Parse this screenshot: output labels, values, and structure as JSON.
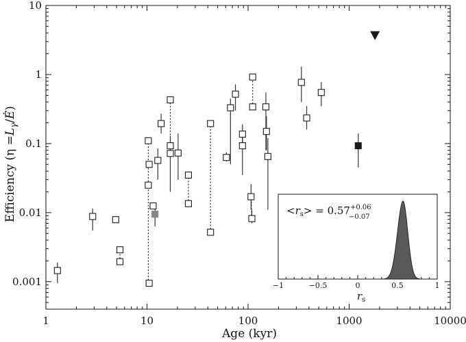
{
  "chart_data": {
    "type": "scatter",
    "xlabel": "Age (kyr)",
    "ylabel": "Efficiency (η = L_γ/Ė)",
    "ylabel_parts": {
      "main": "Efficiency (η =",
      "L": "L",
      "gamma": "γ",
      "slash": "/",
      "Edot": "Ė",
      "close": ")"
    },
    "xscale": "log",
    "yscale": "log",
    "xlim": [
      1,
      10000
    ],
    "ylim": [
      0.0004,
      10
    ],
    "x_ticks": [
      1,
      10,
      100,
      1000,
      10000
    ],
    "x_tick_labels": [
      "1",
      "10",
      "100",
      "1000",
      "10000"
    ],
    "y_ticks": [
      0.001,
      0.01,
      0.1,
      1,
      10
    ],
    "y_tick_labels": [
      "0.001",
      "0.01",
      "0.1",
      "1",
      "10"
    ],
    "grid": false,
    "colors": {
      "open_marker": "#ffffff",
      "marker_edge": "#1a1a1a",
      "gray_marker": "#888888",
      "filled_marker": "#1a1a1a",
      "error_bar": "#333333",
      "hist_fill": "#595959"
    },
    "points": [
      {
        "x": 1.3,
        "y": 0.00145,
        "lo": 0.00095,
        "hi": 0.0019,
        "style": "open"
      },
      {
        "x": 2.9,
        "y": 0.0088,
        "lo": 0.0055,
        "hi": 0.0115,
        "style": "open"
      },
      {
        "x": 4.9,
        "y": 0.0079,
        "lo": 0.0072,
        "hi": 0.0087,
        "style": "open"
      },
      {
        "x": 5.4,
        "y": 0.0029,
        "style": "open"
      },
      {
        "x": 5.4,
        "y": 0.00195,
        "style": "open"
      },
      {
        "x": 10.3,
        "y": 0.11,
        "style": "open"
      },
      {
        "x": 10.5,
        "y": 0.05,
        "style": "open"
      },
      {
        "x": 10.3,
        "y": 0.025,
        "style": "open"
      },
      {
        "x": 10.5,
        "y": 0.00095,
        "style": "open"
      },
      {
        "x": 11.5,
        "y": 0.0125,
        "style": "open"
      },
      {
        "x": 12.0,
        "y": 0.0095,
        "lo": 0.0063,
        "hi": 0.0115,
        "style": "gray"
      },
      {
        "x": 12.8,
        "y": 0.057,
        "lo": 0.03,
        "hi": 0.085,
        "style": "open"
      },
      {
        "x": 13.8,
        "y": 0.195,
        "lo": 0.14,
        "hi": 0.27,
        "style": "open"
      },
      {
        "x": 17.0,
        "y": 0.43,
        "style": "open"
      },
      {
        "x": 17.0,
        "y": 0.093,
        "style": "open"
      },
      {
        "x": 17.0,
        "y": 0.072,
        "lo": 0.02,
        "hi": 0.13,
        "style": "open"
      },
      {
        "x": 20.3,
        "y": 0.073,
        "lo": 0.03,
        "hi": 0.14,
        "style": "open"
      },
      {
        "x": 25.7,
        "y": 0.035,
        "style": "open"
      },
      {
        "x": 25.7,
        "y": 0.0135,
        "style": "open"
      },
      {
        "x": 42.5,
        "y": 0.195,
        "style": "open"
      },
      {
        "x": 42.5,
        "y": 0.0052,
        "style": "open"
      },
      {
        "x": 61.0,
        "y": 0.063,
        "lo": 0.055,
        "hi": 0.075,
        "style": "open"
      },
      {
        "x": 67.0,
        "y": 0.33,
        "lo": 0.05,
        "hi": 0.45,
        "style": "open"
      },
      {
        "x": 75.0,
        "y": 0.52,
        "lo": 0.3,
        "hi": 0.72,
        "style": "open"
      },
      {
        "x": 88.0,
        "y": 0.137,
        "lo": 0.095,
        "hi": 0.19,
        "style": "open"
      },
      {
        "x": 88.0,
        "y": 0.093,
        "lo": 0.035,
        "hi": 0.13,
        "style": "open"
      },
      {
        "x": 107.0,
        "y": 0.017,
        "lo": 0.011,
        "hi": 0.026,
        "style": "open"
      },
      {
        "x": 109.0,
        "y": 0.0082,
        "lo": 0.007,
        "hi": 0.011,
        "style": "open"
      },
      {
        "x": 111.0,
        "y": 0.92,
        "style": "open"
      },
      {
        "x": 111.0,
        "y": 0.34,
        "style": "open"
      },
      {
        "x": 150.0,
        "y": 0.34,
        "lo": 0.08,
        "hi": 0.55,
        "style": "open"
      },
      {
        "x": 152.0,
        "y": 0.15,
        "lo": 0.08,
        "hi": 0.25,
        "style": "open"
      },
      {
        "x": 157.0,
        "y": 0.065,
        "lo": 0.011,
        "hi": 0.12,
        "style": "open"
      },
      {
        "x": 337.0,
        "y": 0.77,
        "lo": 0.4,
        "hi": 1.3,
        "style": "open"
      },
      {
        "x": 380.0,
        "y": 0.235,
        "lo": 0.16,
        "hi": 0.35,
        "style": "open"
      },
      {
        "x": 530.0,
        "y": 0.55,
        "lo": 0.35,
        "hi": 0.78,
        "style": "open"
      },
      {
        "x": 1230.0,
        "y": 0.093,
        "lo": 0.045,
        "hi": 0.14,
        "style": "filled"
      }
    ],
    "upper_limits": [
      {
        "x": 1800.0,
        "y": 3.7,
        "style": "triangle-down"
      }
    ],
    "connections": [
      {
        "x": 10.3,
        "y1": 0.00095,
        "y2": 0.11
      },
      {
        "x": 17.0,
        "y1": 0.072,
        "y2": 0.43
      },
      {
        "x": 25.7,
        "y1": 0.0135,
        "y2": 0.035
      },
      {
        "x": 42.5,
        "y1": 0.0052,
        "y2": 0.195
      },
      {
        "x": 88.0,
        "y1": 0.093,
        "y2": 0.137
      },
      {
        "x": 111.0,
        "y1": 0.34,
        "y2": 0.92
      },
      {
        "x": 108.0,
        "y1": 0.0082,
        "y2": 0.017
      },
      {
        "x": 5.4,
        "y1": 0.00195,
        "y2": 0.0029
      }
    ],
    "inset": {
      "type": "area",
      "xlabel": "r_s",
      "xlabel_parts": {
        "r": "r",
        "sub": "s"
      },
      "xlim": [
        -1,
        1
      ],
      "x_ticks": [
        -1,
        -0.5,
        0,
        0.5,
        1
      ],
      "x_tick_labels": [
        "−1",
        "−0.5",
        "0",
        "0.5",
        "1"
      ],
      "distribution": {
        "type": "gaussian",
        "mean": 0.57,
        "sigma_minus": 0.07,
        "sigma_plus": 0.06
      },
      "annotation": {
        "lt": "<",
        "r": "r",
        "sub": "s",
        "gt": ">",
        "eq": " = 0.57",
        "plus": "+0.06",
        "minus": "−0.07"
      }
    }
  }
}
